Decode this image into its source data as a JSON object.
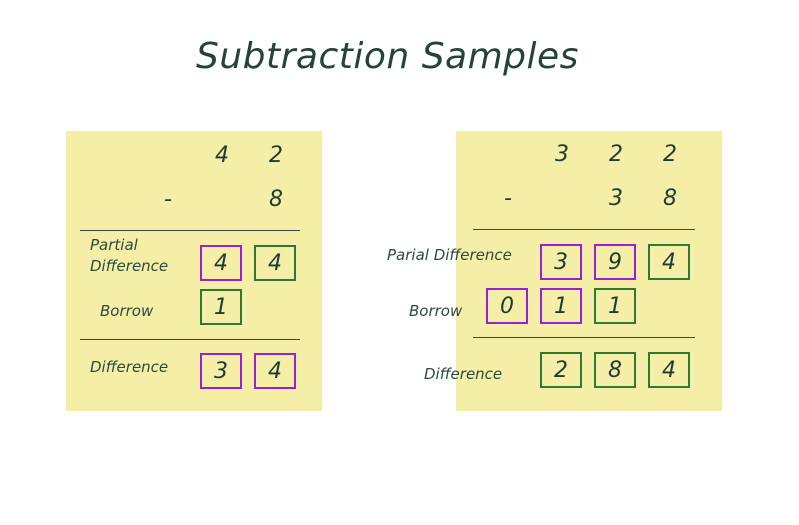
{
  "title": "Subtraction Samples",
  "sample1": {
    "minuend": [
      "4",
      "2"
    ],
    "minus_sign": "-",
    "subtrahend": [
      "8"
    ],
    "partial_label_line1": "Partial",
    "partial_label_line2": "Difference",
    "partial": [
      "4",
      "4"
    ],
    "borrow_label": "Borrow",
    "borrow": [
      "1"
    ],
    "difference_label": "Difference",
    "difference": [
      "3",
      "4"
    ]
  },
  "sample2": {
    "minuend": [
      "3",
      "2",
      "2"
    ],
    "minus_sign": "-",
    "subtrahend": [
      "3",
      "8"
    ],
    "partial_label": "Parial Difference",
    "partial": [
      "3",
      "9",
      "4"
    ],
    "borrow_label": "Borrow",
    "borrow": [
      "0",
      "1",
      "1"
    ],
    "difference_label": "Difference",
    "difference": [
      "2",
      "8",
      "4"
    ]
  },
  "colors": {
    "panel": "#f5eea6",
    "borrowed_box": "#9b1fd6",
    "digit_box": "#2f7a2f",
    "text": "#1f3b33"
  }
}
